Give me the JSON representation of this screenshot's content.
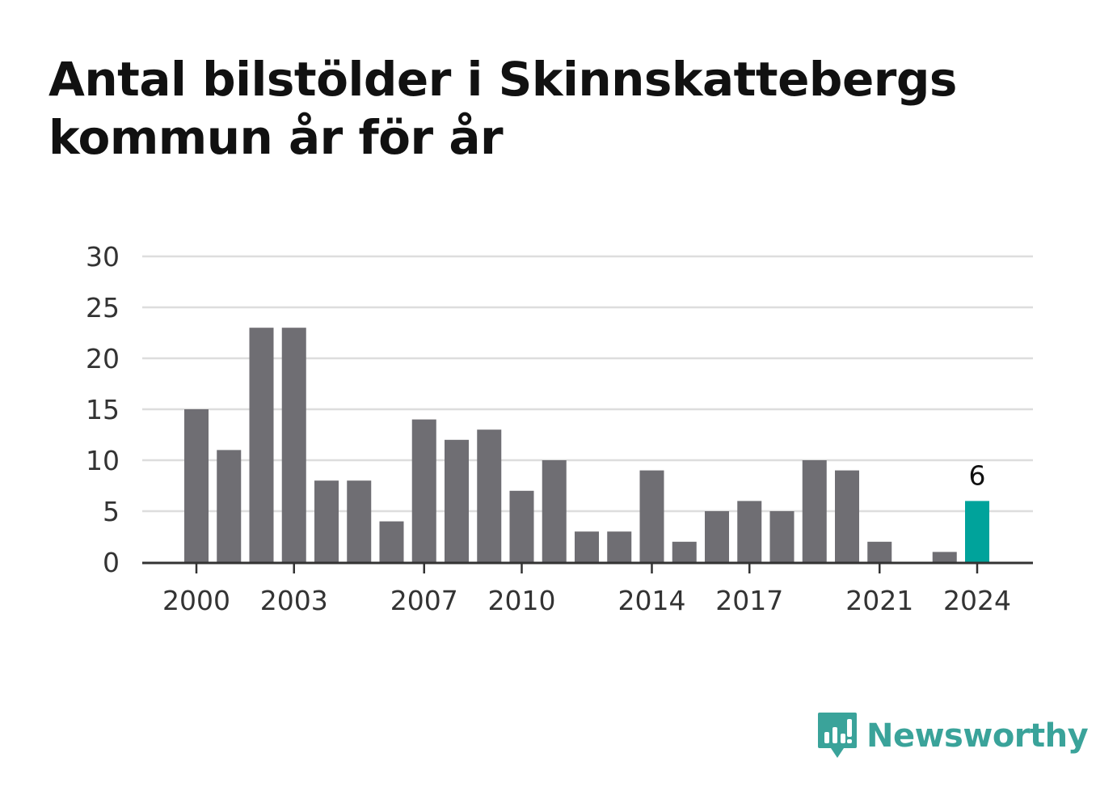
{
  "title_lines": [
    "Antal bilstölder i Skinnskattebergs",
    "kommun år för år"
  ],
  "brand": {
    "name": "Newsworthy",
    "icon": "newsworthy-logo-icon",
    "color": "#3aa39a"
  },
  "colors": {
    "bar": "#6f6e73",
    "highlight": "#00a39b",
    "grid": "#dddddd",
    "axis": "#333333"
  },
  "chart_data": {
    "type": "bar",
    "categories": [
      "2000",
      "2001",
      "2002",
      "2003",
      "2004",
      "2005",
      "2006",
      "2007",
      "2008",
      "2009",
      "2010",
      "2011",
      "2012",
      "2013",
      "2014",
      "2015",
      "2016",
      "2017",
      "2018",
      "2019",
      "2020",
      "2021",
      "2022",
      "2023",
      "2024"
    ],
    "values": [
      15,
      11,
      23,
      23,
      8,
      8,
      4,
      14,
      12,
      13,
      7,
      10,
      3,
      3,
      9,
      2,
      5,
      6,
      5,
      10,
      9,
      2,
      0,
      1,
      6
    ],
    "x_tick_labels": [
      "2000",
      "2003",
      "2007",
      "2010",
      "2014",
      "2017",
      "2021",
      "2024"
    ],
    "y_ticks": [
      0,
      5,
      10,
      15,
      20,
      25,
      30
    ],
    "ylim": [
      0,
      30
    ],
    "grid": true,
    "highlight": {
      "category": "2024",
      "value_label": "6"
    }
  }
}
